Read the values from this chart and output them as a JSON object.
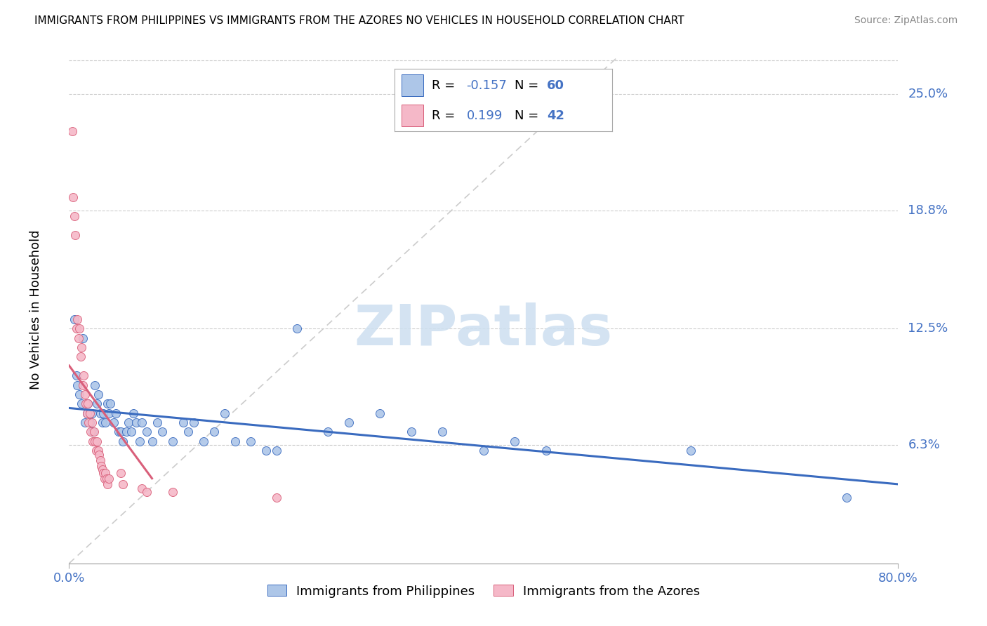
{
  "title": "IMMIGRANTS FROM PHILIPPINES VS IMMIGRANTS FROM THE AZORES NO VEHICLES IN HOUSEHOLD CORRELATION CHART",
  "source": "Source: ZipAtlas.com",
  "ylabel": "No Vehicles in Household",
  "legend_labels": [
    "Immigrants from Philippines",
    "Immigrants from the Azores"
  ],
  "legend_r": [
    -0.157,
    0.199
  ],
  "legend_n": [
    60,
    42
  ],
  "blue_color": "#adc6e8",
  "pink_color": "#f5b8c8",
  "blue_line_color": "#3a6bbf",
  "pink_line_color": "#d95f7a",
  "diag_color": "#cccccc",
  "watermark_color": "#cddff0",
  "yticks": [
    "6.3%",
    "12.5%",
    "18.8%",
    "25.0%"
  ],
  "ytick_vals": [
    0.063,
    0.125,
    0.188,
    0.25
  ],
  "xlim": [
    0.0,
    0.8
  ],
  "ylim": [
    0.0,
    0.27
  ],
  "blue_points": [
    [
      0.005,
      0.13
    ],
    [
      0.007,
      0.1
    ],
    [
      0.008,
      0.095
    ],
    [
      0.01,
      0.09
    ],
    [
      0.012,
      0.085
    ],
    [
      0.013,
      0.12
    ],
    [
      0.015,
      0.075
    ],
    [
      0.017,
      0.08
    ],
    [
      0.018,
      0.085
    ],
    [
      0.02,
      0.075
    ],
    [
      0.022,
      0.08
    ],
    [
      0.023,
      0.07
    ],
    [
      0.025,
      0.095
    ],
    [
      0.027,
      0.085
    ],
    [
      0.028,
      0.09
    ],
    [
      0.03,
      0.08
    ],
    [
      0.032,
      0.075
    ],
    [
      0.033,
      0.08
    ],
    [
      0.035,
      0.075
    ],
    [
      0.037,
      0.085
    ],
    [
      0.038,
      0.08
    ],
    [
      0.04,
      0.085
    ],
    [
      0.043,
      0.075
    ],
    [
      0.045,
      0.08
    ],
    [
      0.048,
      0.07
    ],
    [
      0.05,
      0.07
    ],
    [
      0.052,
      0.065
    ],
    [
      0.055,
      0.07
    ],
    [
      0.057,
      0.075
    ],
    [
      0.06,
      0.07
    ],
    [
      0.062,
      0.08
    ],
    [
      0.065,
      0.075
    ],
    [
      0.068,
      0.065
    ],
    [
      0.07,
      0.075
    ],
    [
      0.075,
      0.07
    ],
    [
      0.08,
      0.065
    ],
    [
      0.085,
      0.075
    ],
    [
      0.09,
      0.07
    ],
    [
      0.1,
      0.065
    ],
    [
      0.11,
      0.075
    ],
    [
      0.115,
      0.07
    ],
    [
      0.12,
      0.075
    ],
    [
      0.13,
      0.065
    ],
    [
      0.14,
      0.07
    ],
    [
      0.15,
      0.08
    ],
    [
      0.16,
      0.065
    ],
    [
      0.175,
      0.065
    ],
    [
      0.19,
      0.06
    ],
    [
      0.2,
      0.06
    ],
    [
      0.22,
      0.125
    ],
    [
      0.25,
      0.07
    ],
    [
      0.27,
      0.075
    ],
    [
      0.3,
      0.08
    ],
    [
      0.33,
      0.07
    ],
    [
      0.36,
      0.07
    ],
    [
      0.4,
      0.06
    ],
    [
      0.43,
      0.065
    ],
    [
      0.46,
      0.06
    ],
    [
      0.6,
      0.06
    ],
    [
      0.75,
      0.035
    ]
  ],
  "pink_points": [
    [
      0.003,
      0.23
    ],
    [
      0.004,
      0.195
    ],
    [
      0.005,
      0.185
    ],
    [
      0.006,
      0.175
    ],
    [
      0.007,
      0.125
    ],
    [
      0.008,
      0.13
    ],
    [
      0.009,
      0.12
    ],
    [
      0.01,
      0.125
    ],
    [
      0.011,
      0.11
    ],
    [
      0.012,
      0.115
    ],
    [
      0.013,
      0.095
    ],
    [
      0.014,
      0.1
    ],
    [
      0.015,
      0.09
    ],
    [
      0.016,
      0.085
    ],
    [
      0.017,
      0.08
    ],
    [
      0.018,
      0.085
    ],
    [
      0.019,
      0.075
    ],
    [
      0.02,
      0.08
    ],
    [
      0.021,
      0.07
    ],
    [
      0.022,
      0.075
    ],
    [
      0.023,
      0.065
    ],
    [
      0.024,
      0.07
    ],
    [
      0.025,
      0.065
    ],
    [
      0.026,
      0.06
    ],
    [
      0.027,
      0.065
    ],
    [
      0.028,
      0.06
    ],
    [
      0.029,
      0.058
    ],
    [
      0.03,
      0.055
    ],
    [
      0.031,
      0.052
    ],
    [
      0.032,
      0.05
    ],
    [
      0.033,
      0.048
    ],
    [
      0.034,
      0.045
    ],
    [
      0.035,
      0.048
    ],
    [
      0.036,
      0.045
    ],
    [
      0.037,
      0.042
    ],
    [
      0.038,
      0.045
    ],
    [
      0.05,
      0.048
    ],
    [
      0.052,
      0.042
    ],
    [
      0.07,
      0.04
    ],
    [
      0.075,
      0.038
    ],
    [
      0.1,
      0.038
    ],
    [
      0.2,
      0.035
    ]
  ],
  "background_color": "#ffffff"
}
